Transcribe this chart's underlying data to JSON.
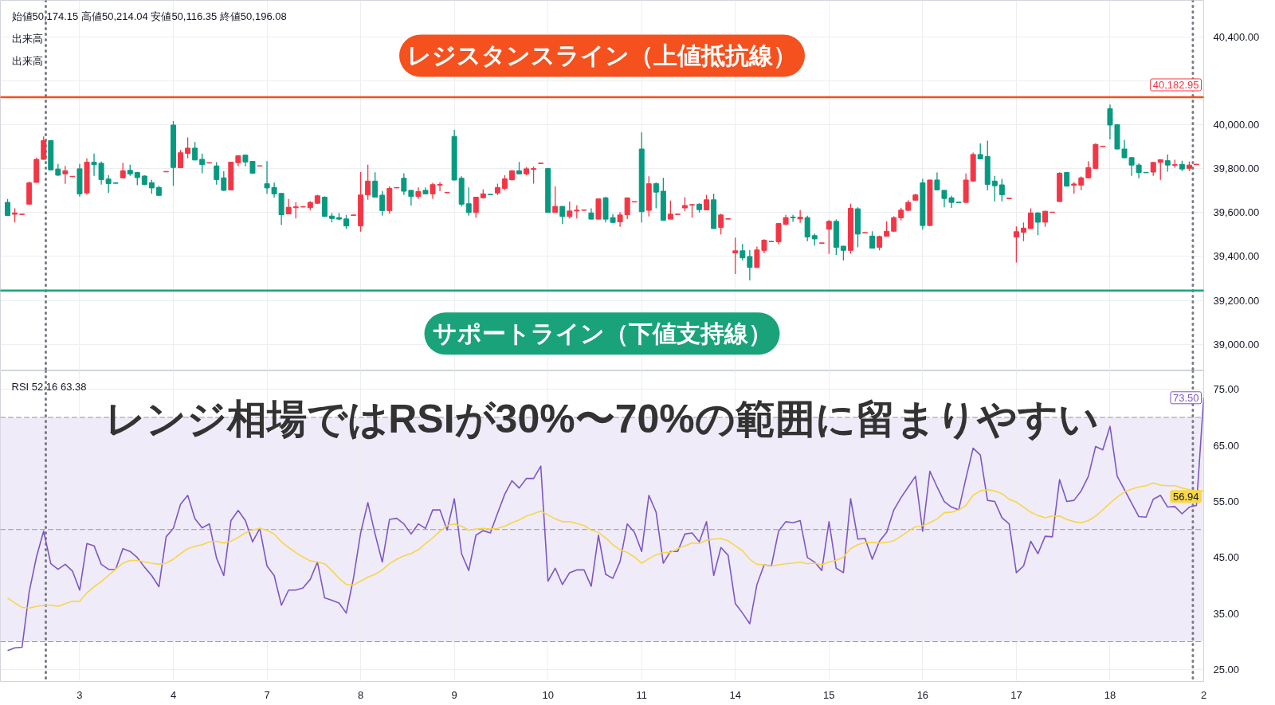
{
  "chart_data": [
    {
      "type": "candlestick",
      "categories": [
        null,
        null,
        null,
        null,
        null,
        null,
        null,
        null,
        null,
        null,
        "3",
        null,
        null,
        null,
        null,
        null,
        null,
        null,
        null,
        null,
        null,
        null,
        null,
        "4",
        null,
        null,
        null,
        null,
        null,
        null,
        null,
        null,
        null,
        null,
        null,
        null,
        "7",
        null,
        null,
        null,
        null,
        null,
        null,
        null,
        null,
        null,
        null,
        null,
        null,
        "8",
        null,
        null,
        null,
        null,
        null,
        null,
        null,
        null,
        null,
        null,
        null,
        null,
        "9",
        null,
        null,
        null,
        null,
        null,
        null,
        null,
        null,
        null,
        null,
        null,
        null,
        "10",
        null,
        null,
        null,
        null,
        null,
        null,
        null,
        null,
        null,
        null,
        null,
        null,
        "11",
        null,
        null,
        null,
        null,
        null,
        null,
        null,
        null,
        null,
        null,
        null,
        null,
        "14",
        null,
        null,
        null,
        null,
        null,
        null,
        null,
        null,
        null,
        null,
        null,
        null,
        "15",
        null,
        null,
        null,
        null,
        null,
        null,
        null,
        null,
        null,
        null,
        null,
        null,
        "16",
        null,
        null,
        null,
        null,
        null,
        null,
        null,
        null,
        null,
        null,
        null,
        null,
        "17",
        null,
        null,
        null,
        null,
        null,
        null,
        null,
        null,
        null,
        null,
        null,
        null,
        "18",
        null,
        null,
        null,
        null,
        null,
        null,
        null,
        null,
        null,
        null,
        null,
        null
      ],
      "ohlc": [
        [
          39646,
          39662,
          39586,
          39586
        ],
        [
          39592,
          39619,
          39555,
          39598
        ],
        [
          39591,
          39594,
          39589,
          39593
        ],
        [
          39638,
          39741,
          39636,
          39735
        ],
        [
          39737,
          39849,
          39736,
          39842
        ],
        [
          39842,
          39946,
          39840,
          39927
        ],
        [
          39927,
          39929,
          39792,
          39794
        ],
        [
          39798,
          39821,
          39767,
          39770
        ],
        [
          39776,
          39812,
          39731,
          39790
        ],
        [
          39763,
          39766,
          39762,
          39765
        ],
        [
          39799,
          39821,
          39673,
          39685
        ],
        [
          39689,
          39847,
          39682,
          39829
        ],
        [
          39829,
          39868,
          39767,
          39818
        ],
        [
          39824,
          39832,
          39727,
          39750
        ],
        [
          39752,
          39770,
          39689,
          39732
        ],
        [
          39735,
          39736,
          39731,
          39733
        ],
        [
          39758,
          39826,
          39756,
          39790
        ],
        [
          39792,
          39818,
          39767,
          39776
        ],
        [
          39782,
          39784,
          39724,
          39759
        ],
        [
          39766,
          39770,
          39724,
          39728
        ],
        [
          39736,
          39749,
          39685,
          39712
        ],
        [
          39714,
          39722,
          39676,
          39678
        ],
        [
          39785,
          39787,
          39784,
          39787
        ],
        [
          39998,
          40016,
          39722,
          39805
        ],
        [
          39804,
          39885,
          39801,
          39872
        ],
        [
          39869,
          39942,
          39847,
          39893
        ],
        [
          39893,
          39921,
          39839,
          39839
        ],
        [
          39842,
          39868,
          39779,
          39818
        ],
        [
          39825,
          39827,
          39824,
          39827
        ],
        [
          39812,
          39829,
          39727,
          39750
        ],
        [
          39758,
          39788,
          39698,
          39701
        ],
        [
          39703,
          39830,
          39701,
          39829
        ],
        [
          39827,
          39861,
          39810,
          39858
        ],
        [
          39861,
          39864,
          39810,
          39830
        ],
        [
          39833,
          39834,
          39778,
          39779
        ],
        [
          39811,
          39813,
          39810,
          39813
        ],
        [
          39731,
          39834,
          39685,
          39712
        ],
        [
          39714,
          39736,
          39668,
          39685
        ],
        [
          39687,
          39689,
          39543,
          39590
        ],
        [
          39594,
          39662,
          39592,
          39624
        ],
        [
          39622,
          39646,
          39573,
          39626
        ],
        [
          39625,
          39627,
          39624,
          39627
        ],
        [
          39622,
          39652,
          39610,
          39646
        ],
        [
          39642,
          39681,
          39641,
          39676
        ],
        [
          39670,
          39674,
          39581,
          39582
        ],
        [
          39584,
          39598,
          39555,
          39573
        ],
        [
          39577,
          39598,
          39565,
          39570
        ],
        [
          39571,
          39589,
          39525,
          39539
        ],
        [
          39587,
          39589,
          39586,
          39589
        ],
        [
          39539,
          39784,
          39513,
          39680
        ],
        [
          39680,
          39818,
          39658,
          39743
        ],
        [
          39743,
          39783,
          39668,
          39670
        ],
        [
          39679,
          39697,
          39586,
          39609
        ],
        [
          39609,
          39719,
          39595,
          39710
        ],
        [
          39712,
          39714,
          39711,
          39714
        ],
        [
          39756,
          39779,
          39680,
          39697
        ],
        [
          39701,
          39702,
          39632,
          39673
        ],
        [
          39673,
          39714,
          39663,
          39696
        ],
        [
          39701,
          39714,
          39684,
          39685
        ],
        [
          39685,
          39735,
          39663,
          39727
        ],
        [
          39724,
          39738,
          39697,
          39728
        ],
        [
          39690,
          39692,
          39689,
          39692
        ],
        [
          39946,
          39976,
          39746,
          39748
        ],
        [
          39756,
          39765,
          39628,
          39638
        ],
        [
          39640,
          39714,
          39586,
          39600
        ],
        [
          39600,
          39672,
          39577,
          39670
        ],
        [
          39667,
          39705,
          39664,
          39685
        ],
        [
          39683,
          39683,
          39681,
          39681
        ],
        [
          39689,
          39732,
          39680,
          39714
        ],
        [
          39710,
          39770,
          39702,
          39753
        ],
        [
          39749,
          39792,
          39746,
          39790
        ],
        [
          39790,
          39830,
          39775,
          39776
        ],
        [
          39776,
          39807,
          39770,
          39799
        ],
        [
          39796,
          39809,
          39732,
          39800
        ],
        [
          39823,
          39825,
          39822,
          39825
        ],
        [
          39800,
          39801,
          39599,
          39600
        ],
        [
          39600,
          39719,
          39599,
          39628
        ],
        [
          39628,
          39629,
          39548,
          39582
        ],
        [
          39582,
          39650,
          39573,
          39607
        ],
        [
          39607,
          39633,
          39573,
          39611
        ],
        [
          39610,
          39612,
          39609,
          39612
        ],
        [
          39598,
          39619,
          39569,
          39570
        ],
        [
          39570,
          39664,
          39569,
          39662
        ],
        [
          39667,
          39672,
          39555,
          39570
        ],
        [
          39577,
          39593,
          39553,
          39555
        ],
        [
          39558,
          39602,
          39535,
          39589
        ],
        [
          39590,
          39668,
          39570,
          39667
        ],
        [
          39648,
          39650,
          39647,
          39650
        ],
        [
          39889,
          39964,
          39555,
          39604
        ],
        [
          39610,
          39765,
          39582,
          39731
        ],
        [
          39732,
          39736,
          39619,
          39693
        ],
        [
          39697,
          39758,
          39564,
          39565
        ],
        [
          39570,
          39655,
          39569,
          39593
        ],
        [
          39591,
          39593,
          39590,
          39593
        ],
        [
          39621,
          39670,
          39606,
          39632
        ],
        [
          39634,
          39639,
          39577,
          39636
        ],
        [
          39638,
          39642,
          39600,
          39613
        ],
        [
          39612,
          39681,
          39611,
          39658
        ],
        [
          39658,
          39685,
          39526,
          39527
        ],
        [
          39532,
          39595,
          39501,
          39589
        ],
        [
          39570,
          39572,
          39569,
          39572
        ],
        [
          39416,
          39486,
          39320,
          39426
        ],
        [
          39426,
          39457,
          39382,
          39394
        ],
        [
          39400,
          39430,
          39291,
          39350
        ],
        [
          39350,
          39445,
          39348,
          39430
        ],
        [
          39428,
          39479,
          39415,
          39474
        ],
        [
          39469,
          39470,
          39467,
          39467
        ],
        [
          39467,
          39552,
          39455,
          39550
        ],
        [
          39546,
          39589,
          39543,
          39577
        ],
        [
          39579,
          39589,
          39558,
          39576
        ],
        [
          39571,
          39612,
          39553,
          39579
        ],
        [
          39577,
          39586,
          39470,
          39489
        ],
        [
          39495,
          39504,
          39450,
          39480
        ],
        [
          39460,
          39462,
          39459,
          39462
        ],
        [
          39524,
          39566,
          39413,
          39560
        ],
        [
          39560,
          39569,
          39407,
          39442
        ],
        [
          39447,
          39449,
          39382,
          39428
        ],
        [
          39428,
          39640,
          39413,
          39619
        ],
        [
          39617,
          39624,
          39442,
          39502
        ],
        [
          39507,
          39509,
          39506,
          39509
        ],
        [
          39493,
          39515,
          39436,
          39438
        ],
        [
          39442,
          39495,
          39428,
          39491
        ],
        [
          39492,
          39560,
          39491,
          39515
        ],
        [
          39515,
          39583,
          39513,
          39577
        ],
        [
          39576,
          39622,
          39564,
          39611
        ],
        [
          39610,
          39656,
          39607,
          39646
        ],
        [
          39656,
          39685,
          39655,
          39680
        ],
        [
          39735,
          39753,
          39522,
          39541
        ],
        [
          39541,
          39749,
          39539,
          39748
        ],
        [
          39748,
          39782,
          39701,
          39703
        ],
        [
          39701,
          39702,
          39624,
          39664
        ],
        [
          39667,
          39676,
          39621,
          39646
        ],
        [
          39647,
          39647,
          39645,
          39645
        ],
        [
          39646,
          39778,
          39645,
          39748
        ],
        [
          39743,
          39873,
          39741,
          39864
        ],
        [
          39864,
          39915,
          39842,
          39844
        ],
        [
          39855,
          39927,
          39701,
          39728
        ],
        [
          39743,
          39767,
          39651,
          39722
        ],
        [
          39726,
          39753,
          39651,
          39681
        ],
        [
          39663,
          39665,
          39662,
          39665
        ],
        [
          39489,
          39537,
          39373,
          39513
        ],
        [
          39510,
          39555,
          39470,
          39529
        ],
        [
          39527,
          39619,
          39526,
          39598
        ],
        [
          39598,
          39602,
          39497,
          39556
        ],
        [
          39556,
          39607,
          39535,
          39606
        ],
        [
          39600,
          39602,
          39599,
          39602
        ],
        [
          39650,
          39783,
          39649,
          39779
        ],
        [
          39782,
          39783,
          39719,
          39720
        ],
        [
          39724,
          39739,
          39685,
          39730
        ],
        [
          39724,
          39764,
          39702,
          39758
        ],
        [
          39758,
          39834,
          39756,
          39804
        ],
        [
          39800,
          39915,
          39799,
          39910
        ],
        [
          39900,
          39902,
          39899,
          39902
        ],
        [
          40073,
          40091,
          39933,
          39998
        ],
        [
          40000,
          40001,
          39887,
          39889
        ],
        [
          39889,
          39931,
          39847,
          39849
        ],
        [
          39850,
          39852,
          39767,
          39816
        ],
        [
          39816,
          39824,
          39755,
          39782
        ],
        [
          39783,
          39783,
          39781,
          39781
        ],
        [
          39784,
          39829,
          39767,
          39828
        ],
        [
          39828,
          39842,
          39749,
          39840
        ],
        [
          39836,
          39864,
          39786,
          39816
        ],
        [
          39815,
          39840,
          39804,
          39818
        ],
        [
          39819,
          39836,
          39789,
          39798
        ],
        [
          39801,
          39832,
          39789,
          39816
        ],
        [
          39818,
          39820,
          39818,
          39820
        ]
      ],
      "colors": [
        "#089981",
        "#f23645",
        "#f23645",
        "#f23645",
        "#f23645",
        "#f23645",
        "#089981",
        "#089981",
        "#f23645",
        "#f23645",
        "#089981",
        "#f23645",
        "#089981",
        "#089981",
        "#089981",
        "#089981",
        "#f23645",
        "#089981",
        "#089981",
        "#089981",
        "#089981",
        "#089981",
        "#f23645",
        "#089981",
        "#f23645",
        "#f23645",
        "#089981",
        "#089981",
        "#f23645",
        "#089981",
        "#089981",
        "#f23645",
        "#f23645",
        "#089981",
        "#089981",
        "#f23645",
        "#089981",
        "#089981",
        "#089981",
        "#f23645",
        "#f23645",
        "#f23645",
        "#f23645",
        "#f23645",
        "#089981",
        "#089981",
        "#089981",
        "#089981",
        "#f23645",
        "#f23645",
        "#f23645",
        "#089981",
        "#089981",
        "#f23645",
        "#f23645",
        "#089981",
        "#089981",
        "#f23645",
        "#089981",
        "#f23645",
        "#f23645",
        "#f23645",
        "#089981",
        "#089981",
        "#089981",
        "#f23645",
        "#f23645",
        "#089981",
        "#f23645",
        "#f23645",
        "#f23645",
        "#089981",
        "#f23645",
        "#f23645",
        "#f23645",
        "#089981",
        "#f23645",
        "#089981",
        "#f23645",
        "#f23645",
        "#f23645",
        "#089981",
        "#f23645",
        "#089981",
        "#089981",
        "#f23645",
        "#f23645",
        "#f23645",
        "#089981",
        "#f23645",
        "#089981",
        "#089981",
        "#f23645",
        "#f23645",
        "#f23645",
        "#f23645",
        "#089981",
        "#f23645",
        "#089981",
        "#f23645",
        "#f23645",
        "#f23645",
        "#089981",
        "#089981",
        "#f23645",
        "#f23645",
        "#089981",
        "#f23645",
        "#f23645",
        "#089981",
        "#f23645",
        "#089981",
        "#089981",
        "#f23645",
        "#f23645",
        "#089981",
        "#089981",
        "#f23645",
        "#089981",
        "#f23645",
        "#089981",
        "#f23645",
        "#f23645",
        "#f23645",
        "#f23645",
        "#f23645",
        "#f23645",
        "#089981",
        "#f23645",
        "#089981",
        "#089981",
        "#089981",
        "#089981",
        "#f23645",
        "#f23645",
        "#089981",
        "#089981",
        "#089981",
        "#089981",
        "#f23645",
        "#f23645",
        "#f23645",
        "#f23645",
        "#089981",
        "#f23645",
        "#f23645",
        "#f23645",
        "#089981",
        "#f23645",
        "#f23645",
        "#f23645",
        "#f23645",
        "#f23645",
        "#089981",
        "#089981",
        "#089981",
        "#089981",
        "#089981",
        "#089981",
        "#f23645",
        "#f23645",
        "#089981",
        "#f23645",
        "#089981",
        "#f23645",
        "#f23645"
      ],
      "ylim": [
        38880,
        40565
      ],
      "yticks": [
        {
          "value": 39000,
          "label": "39,000.00"
        },
        {
          "value": 39200,
          "label": "39,200.00"
        },
        {
          "value": 39400,
          "label": "39,400.00"
        },
        {
          "value": 39600,
          "label": "39,600.00"
        },
        {
          "value": 39800,
          "label": "39,800.00"
        },
        {
          "value": 40000,
          "label": "40,000.00"
        },
        {
          "value": 40200,
          "label": null
        },
        {
          "value": 40400,
          "label": "40,400.00"
        }
      ],
      "tick_labels": "y",
      "grid": true,
      "ref_lines": [
        {
          "axis": "y",
          "value": 40125,
          "label": "レジスタンスライン（上値抵抗線）",
          "color": "#f4511e"
        },
        {
          "axis": "y",
          "value": 39245,
          "label": "サポートライン（下値支持線）",
          "color": "#1aa37a"
        }
      ],
      "annotations": [
        "始値50,174.15 高値50,214.04 安値50,116.35 終値50,196.08",
        "出来高",
        "出来高",
        "40,182.95"
      ]
    },
    {
      "type": "line",
      "categories": [
        null,
        null,
        null,
        null,
        null,
        null,
        null,
        null,
        null,
        null,
        "3",
        null,
        null,
        null,
        null,
        null,
        null,
        null,
        null,
        null,
        null,
        null,
        null,
        "4",
        null,
        null,
        null,
        null,
        null,
        null,
        null,
        null,
        null,
        null,
        null,
        null,
        "7",
        null,
        null,
        null,
        null,
        null,
        null,
        null,
        null,
        null,
        null,
        null,
        null,
        "8",
        null,
        null,
        null,
        null,
        null,
        null,
        null,
        null,
        null,
        null,
        null,
        null,
        "9",
        null,
        null,
        null,
        null,
        null,
        null,
        null,
        null,
        null,
        null,
        null,
        null,
        "10",
        null,
        null,
        null,
        null,
        null,
        null,
        null,
        null,
        null,
        null,
        null,
        null,
        "11",
        null,
        null,
        null,
        null,
        null,
        null,
        null,
        null,
        null,
        null,
        null,
        null,
        "14",
        null,
        null,
        null,
        null,
        null,
        null,
        null,
        null,
        null,
        null,
        null,
        null,
        "15",
        null,
        null,
        null,
        null,
        null,
        null,
        null,
        null,
        null,
        null,
        null,
        null,
        "16",
        null,
        null,
        null,
        null,
        null,
        null,
        null,
        null,
        null,
        null,
        null,
        null,
        "17",
        null,
        null,
        null,
        null,
        null,
        null,
        null,
        null,
        null,
        null,
        null,
        null,
        "18",
        null,
        null,
        null,
        null,
        null,
        null,
        null,
        null,
        null,
        null,
        null,
        null,
        "2"
      ],
      "series": [
        {
          "color": "#7e57c2",
          "values": [
            28.4,
            28.9,
            29.0,
            38.9,
            45.1,
            49.7,
            43.9,
            42.9,
            43.8,
            42.6,
            39.2,
            47.5,
            47.1,
            43.8,
            42.9,
            42.9,
            46.6,
            46.1,
            45.0,
            43.3,
            41.8,
            39.8,
            48.7,
            50.2,
            54.5,
            56.1,
            51.9,
            50.3,
            51.0,
            44.9,
            41.8,
            51.6,
            53.4,
            51.6,
            47.8,
            50.2,
            43.5,
            41.8,
            36.5,
            39.2,
            39.2,
            39.6,
            41.1,
            44.2,
            37.8,
            37.4,
            36.9,
            35.1,
            41.3,
            49.4,
            54.8,
            49.2,
            44.2,
            51.8,
            52.0,
            51.0,
            49.2,
            51.0,
            50.2,
            53.5,
            53.5,
            49.9,
            55.5,
            45.7,
            42.7,
            49.0,
            49.8,
            49.4,
            52.9,
            56.3,
            58.7,
            57.4,
            59.1,
            59.1,
            61.3,
            40.8,
            43.1,
            40.2,
            42.3,
            42.8,
            42.8,
            39.9,
            49.0,
            42.0,
            41.3,
            44.3,
            51.0,
            49.5,
            46.1,
            56.1,
            53.1,
            44.0,
            46.1,
            46.1,
            49.2,
            49.4,
            47.8,
            51.4,
            41.8,
            46.8,
            45.4,
            36.8,
            35.1,
            33.2,
            40.2,
            43.7,
            43.5,
            49.7,
            51.4,
            51.2,
            51.6,
            45.0,
            44.2,
            42.7,
            51.4,
            43.1,
            42.3,
            55.5,
            48.3,
            48.4,
            44.7,
            47.9,
            49.5,
            53.5,
            55.7,
            57.6,
            59.5,
            49.7,
            60.4,
            57.6,
            55.0,
            54.0,
            53.5,
            59.1,
            64.5,
            63.3,
            55.2,
            55.0,
            52.1,
            51.0,
            42.3,
            43.5,
            47.9,
            45.7,
            48.8,
            48.7,
            58.9,
            55.0,
            55.2,
            56.9,
            59.5,
            64.8,
            64.2,
            68.4,
            59.5,
            57.1,
            54.7,
            52.3,
            52.2,
            55.4,
            56.1,
            54.0,
            54.1,
            52.8,
            54.0,
            54.3,
            73.5
          ]
        },
        {
          "color": "#f7d64a",
          "values": [
            37.8,
            36.9,
            36.1,
            36.0,
            36.3,
            36.5,
            36.5,
            36.3,
            36.8,
            37.2,
            37.2,
            38.7,
            39.8,
            40.7,
            41.8,
            42.9,
            44.0,
            44.5,
            44.5,
            44.2,
            44.0,
            43.8,
            44.0,
            44.7,
            45.7,
            46.6,
            47.0,
            47.3,
            47.8,
            47.9,
            47.6,
            47.9,
            48.6,
            49.4,
            49.9,
            50.2,
            49.9,
            49.2,
            47.8,
            46.8,
            45.9,
            45.1,
            44.4,
            44.2,
            43.9,
            42.7,
            41.3,
            40.2,
            40.1,
            40.8,
            41.5,
            42.0,
            42.8,
            43.9,
            44.7,
            45.3,
            45.7,
            46.4,
            47.5,
            48.5,
            49.7,
            50.7,
            51.0,
            50.6,
            49.9,
            50.1,
            50.2,
            50.1,
            50.2,
            50.6,
            51.2,
            51.7,
            52.4,
            52.8,
            53.3,
            52.6,
            51.9,
            51.4,
            51.4,
            51.1,
            50.7,
            49.9,
            49.5,
            48.5,
            47.3,
            46.4,
            45.9,
            45.1,
            44.0,
            44.8,
            45.5,
            45.9,
            45.9,
            46.6,
            47.1,
            47.6,
            47.5,
            48.1,
            48.3,
            48.4,
            48.0,
            47.1,
            46.2,
            44.7,
            43.8,
            43.7,
            43.5,
            43.7,
            43.9,
            44.0,
            44.2,
            43.9,
            44.0,
            43.7,
            44.2,
            44.5,
            45.1,
            46.6,
            47.3,
            47.7,
            47.7,
            47.6,
            47.7,
            48.0,
            48.8,
            49.7,
            50.5,
            50.7,
            51.2,
            51.9,
            53.0,
            53.1,
            53.5,
            54.3,
            56.1,
            56.9,
            57.1,
            56.9,
            56.4,
            55.4,
            54.9,
            54.0,
            53.1,
            52.5,
            52.1,
            52.4,
            52.4,
            51.8,
            51.4,
            51.2,
            51.6,
            52.4,
            53.5,
            54.7,
            55.8,
            56.7,
            57.2,
            57.6,
            57.8,
            58.3,
            57.9,
            57.8,
            57.8,
            57.4,
            57.1,
            56.8,
            56.94
          ]
        }
      ],
      "ylim": [
        22.9,
        78.3
      ],
      "yticks": [
        {
          "value": 25,
          "label": "25.00"
        },
        {
          "value": 35,
          "label": "35.00"
        },
        {
          "value": 45,
          "label": "45.00"
        },
        {
          "value": 55,
          "label": "55.00"
        },
        {
          "value": 65,
          "label": "65.00"
        },
        {
          "value": 75,
          "label": "75.00"
        }
      ],
      "grid": true,
      "bands": [
        {
          "axis": "y",
          "from": 30,
          "to": 70,
          "color": "#efebf8"
        }
      ],
      "ref_lines": [
        {
          "axis": "y",
          "value": 70,
          "color": "#9598a1",
          "line_style": "dashed"
        },
        {
          "axis": "y",
          "value": 50,
          "color": "#9598a1",
          "line_style": "dashed"
        },
        {
          "axis": "y",
          "value": 30,
          "color": "#9598a1",
          "line_style": "dashed"
        }
      ],
      "annotations": [
        "RSI 52.16 63.38",
        "レンジ相場ではRSIが30%〜70%の範囲に留まりやすい",
        {
          "text": "73.50",
          "y": 73.5
        },
        {
          "text": "56.94",
          "y": 56.94
        }
      ]
    }
  ]
}
